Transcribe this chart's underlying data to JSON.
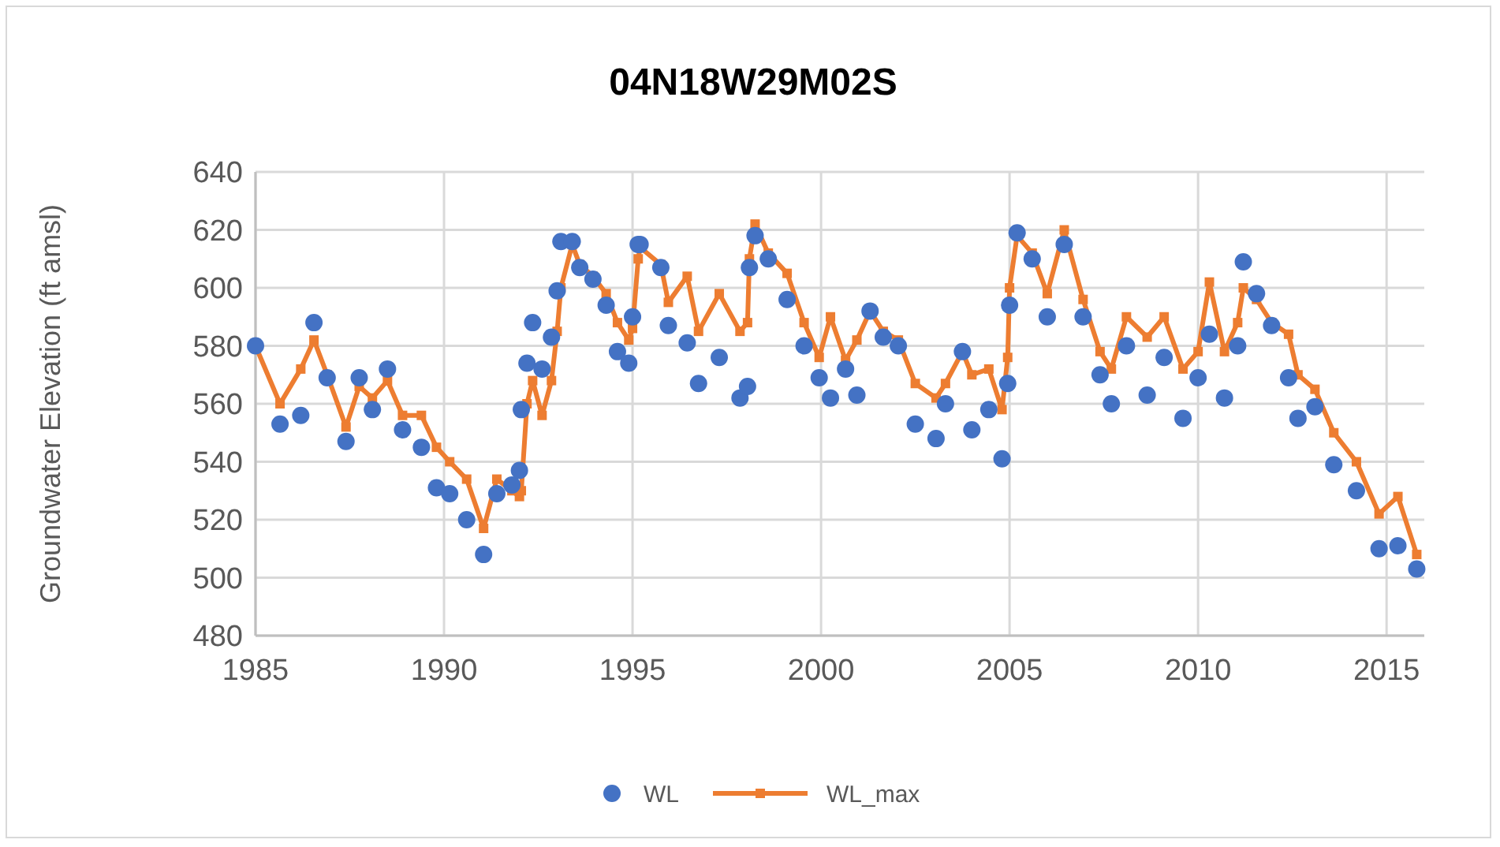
{
  "chart_data": {
    "type": "line",
    "title": "04N18W29M02S",
    "ylabel": "Groundwater Elevation (ft  amsl)",
    "xlim": [
      1985,
      2016
    ],
    "xticks": [
      1985,
      1990,
      1995,
      2000,
      2005,
      2010,
      2015
    ],
    "ylim": [
      480,
      640
    ],
    "yticks": [
      480,
      500,
      520,
      540,
      560,
      580,
      600,
      620,
      640
    ],
    "grid": true,
    "legend": "bottom",
    "series": [
      {
        "name": "WL",
        "type": "scatter",
        "marker": "circle",
        "color": "#4472c4",
        "x": [
          1985.0,
          1985.65,
          1986.2,
          1986.55,
          1986.9,
          1987.4,
          1987.75,
          1988.1,
          1988.5,
          1988.9,
          1989.4,
          1989.8,
          1990.15,
          1990.6,
          1991.05,
          1991.4,
          1991.8,
          1992.0,
          1992.05,
          1992.2,
          1992.35,
          1992.6,
          1992.85,
          1993.0,
          1993.1,
          1993.4,
          1993.6,
          1993.95,
          1994.3,
          1994.6,
          1994.9,
          1995.0,
          1995.15,
          1995.2,
          1995.75,
          1995.95,
          1996.45,
          1996.75,
          1997.3,
          1997.85,
          1998.05,
          1998.1,
          1998.25,
          1998.6,
          1999.1,
          1999.55,
          1999.95,
          2000.25,
          2000.65,
          2000.95,
          2001.3,
          2001.65,
          2002.05,
          2002.5,
          2003.05,
          2003.3,
          2003.75,
          2004.0,
          2004.45,
          2004.8,
          2004.95,
          2005.0,
          2005.2,
          2005.6,
          2006.0,
          2006.45,
          2006.95,
          2007.4,
          2007.7,
          2008.1,
          2008.65,
          2009.1,
          2009.6,
          2010.0,
          2010.3,
          2010.7,
          2011.05,
          2011.2,
          2011.55,
          2011.95,
          2012.4,
          2012.65,
          2013.1,
          2013.6,
          2014.2,
          2014.8,
          2015.3,
          2015.8
        ],
        "values": [
          580,
          553,
          556,
          588,
          569,
          547,
          569,
          558,
          572,
          551,
          545,
          531,
          529,
          520,
          508,
          529,
          532,
          537,
          558,
          574,
          588,
          572,
          583,
          599,
          616,
          616,
          607,
          603,
          594,
          578,
          574,
          590,
          615,
          615,
          607,
          587,
          581,
          567,
          576,
          562,
          566,
          607,
          618,
          610,
          596,
          580,
          569,
          562,
          572,
          563,
          592,
          583,
          580,
          553,
          548,
          560,
          578,
          551,
          558,
          541,
          567,
          594,
          619,
          610,
          590,
          615,
          590,
          570,
          560,
          580,
          563,
          576,
          555,
          569,
          584,
          562,
          580,
          609,
          598,
          587,
          569,
          555,
          559,
          539,
          530,
          510,
          511,
          503
        ]
      },
      {
        "name": "WL_max",
        "marker": "square",
        "color": "#ed7d31",
        "x": [
          1985.0,
          1985.65,
          1986.2,
          1986.55,
          1986.9,
          1987.4,
          1987.75,
          1988.1,
          1988.5,
          1988.9,
          1989.4,
          1989.8,
          1990.15,
          1990.6,
          1991.05,
          1991.4,
          1991.8,
          1992.0,
          1992.05,
          1992.2,
          1992.35,
          1992.6,
          1992.85,
          1993.0,
          1993.1,
          1993.4,
          1993.6,
          1993.95,
          1994.3,
          1994.6,
          1994.9,
          1995.0,
          1995.15,
          1995.2,
          1995.75,
          1995.95,
          1996.45,
          1996.75,
          1997.3,
          1997.85,
          1998.05,
          1998.1,
          1998.25,
          1998.6,
          1999.1,
          1999.55,
          1999.95,
          2000.25,
          2000.65,
          2000.95,
          2001.3,
          2001.65,
          2002.05,
          2002.5,
          2003.05,
          2003.3,
          2003.75,
          2004.0,
          2004.45,
          2004.8,
          2004.95,
          2005.0,
          2005.2,
          2005.6,
          2006.0,
          2006.45,
          2006.95,
          2007.4,
          2007.7,
          2008.1,
          2008.65,
          2009.1,
          2009.6,
          2010.0,
          2010.3,
          2010.7,
          2011.05,
          2011.2,
          2011.55,
          2011.95,
          2012.4,
          2012.65,
          2013.1,
          2013.6,
          2014.2,
          2014.8,
          2015.3,
          2015.8
        ],
        "values": [
          580,
          560,
          572,
          582,
          570,
          552,
          566,
          562,
          568,
          556,
          556,
          545,
          540,
          534,
          517,
          534,
          530,
          528,
          530,
          560,
          568,
          556,
          568,
          585,
          600,
          615,
          608,
          604,
          598,
          588,
          582,
          586,
          610,
          614,
          608,
          595,
          604,
          585,
          598,
          585,
          588,
          610,
          622,
          612,
          605,
          588,
          576,
          590,
          575,
          582,
          592,
          585,
          582,
          567,
          562,
          567,
          578,
          570,
          572,
          558,
          576,
          600,
          618,
          612,
          598,
          620,
          596,
          578,
          572,
          590,
          583,
          590,
          572,
          578,
          602,
          578,
          588,
          600,
          596,
          588,
          584,
          570,
          565,
          550,
          540,
          522,
          528,
          508
        ]
      }
    ]
  }
}
